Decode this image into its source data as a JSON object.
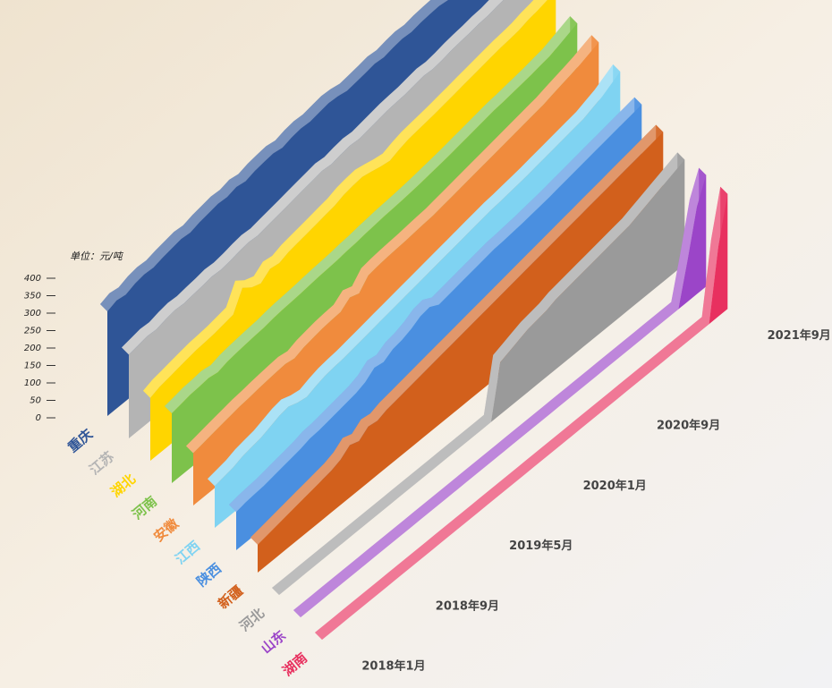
{
  "chart_data": {
    "type": "area3d",
    "y_label": "单位：元/吨",
    "ylim": [
      0,
      400
    ],
    "yticks": [
      0,
      50,
      100,
      150,
      200,
      250,
      300,
      350,
      400
    ],
    "categories": [
      "2018年1月",
      null,
      null,
      null,
      null,
      null,
      null,
      null,
      "2018年9月",
      null,
      null,
      null,
      null,
      null,
      null,
      null,
      "2019年5月",
      null,
      null,
      null,
      null,
      null,
      null,
      null,
      "2020年1月",
      null,
      null,
      null,
      null,
      null,
      null,
      null,
      "2020年9月",
      null,
      null,
      null,
      null,
      null,
      null,
      null,
      null,
      null,
      null,
      null,
      "2021年9月"
    ],
    "series": [
      {
        "name": "重庆",
        "color": "#2f5597",
        "values": [
          300,
          310,
          305,
          315,
          320,
          318,
          325,
          330,
          335,
          332,
          340,
          345,
          350,
          348,
          355,
          350,
          358,
          362,
          365,
          360,
          368,
          372,
          370,
          375,
          380,
          378,
          372,
          376,
          380,
          385,
          382,
          388,
          392,
          390,
          395,
          398,
          400,
          396,
          402,
          405,
          410,
          408,
          415,
          420,
          430
        ]
      },
      {
        "name": "江苏",
        "color": "#b4b4b4",
        "values": [
          240,
          245,
          250,
          248,
          255,
          260,
          258,
          262,
          265,
          270,
          268,
          272,
          278,
          282,
          280,
          285,
          290,
          295,
          300,
          305,
          310,
          315,
          312,
          318,
          322,
          320,
          325,
          330,
          335,
          338,
          340,
          345,
          350,
          348,
          352,
          358,
          362,
          365,
          370,
          372,
          378,
          382,
          388,
          392,
          400
        ]
      },
      {
        "name": "湖北",
        "color": "#ffd500",
        "values": [
          180,
          190,
          195,
          200,
          205,
          210,
          212,
          215,
          220,
          225,
          280,
          260,
          250,
          270,
          265,
          275,
          280,
          285,
          290,
          295,
          300,
          310,
          315,
          318,
          312,
          305,
          300,
          310,
          318,
          322,
          326,
          330,
          335,
          340,
          345,
          350,
          355,
          360,
          365,
          368,
          372,
          380,
          385,
          392,
          400
        ]
      },
      {
        "name": "河南",
        "color": "#7dc24b",
        "values": [
          200,
          205,
          210,
          212,
          215,
          210,
          218,
          222,
          225,
          228,
          230,
          235,
          238,
          240,
          242,
          245,
          248,
          250,
          252,
          256,
          258,
          262,
          265,
          268,
          270,
          272,
          275,
          278,
          282,
          286,
          290,
          295,
          300,
          305,
          310,
          315,
          318,
          322,
          326,
          330,
          335,
          340,
          350,
          360,
          370
        ]
      },
      {
        "name": "安徽",
        "color": "#f08b3d",
        "values": [
          150,
          155,
          160,
          165,
          170,
          175,
          178,
          182,
          185,
          188,
          190,
          185,
          195,
          200,
          205,
          208,
          210,
          230,
          220,
          250,
          255,
          258,
          260,
          262,
          265,
          268,
          270,
          275,
          280,
          285,
          290,
          295,
          300,
          305,
          310,
          315,
          320,
          325,
          330,
          338,
          345,
          352,
          360,
          370,
          380
        ]
      },
      {
        "name": "江西",
        "color": "#7fd3f2",
        "values": [
          120,
          125,
          130,
          140,
          145,
          150,
          160,
          170,
          175,
          165,
          160,
          170,
          178,
          182,
          185,
          190,
          195,
          200,
          205,
          210,
          215,
          220,
          225,
          230,
          235,
          240,
          245,
          250,
          255,
          260,
          265,
          268,
          272,
          276,
          280,
          285,
          290,
          295,
          300,
          305,
          310,
          320,
          330,
          345,
          360
        ]
      },
      {
        "name": "陕西",
        "color": "#4a8fe0",
        "values": [
          110,
          115,
          118,
          120,
          125,
          130,
          135,
          140,
          148,
          150,
          155,
          160,
          165,
          170,
          180,
          200,
          195,
          210,
          215,
          225,
          240,
          245,
          230,
          235,
          240,
          245,
          250,
          255,
          260,
          262,
          265,
          268,
          272,
          276,
          280,
          285,
          290,
          295,
          300,
          305,
          310,
          315,
          320,
          325,
          330
        ]
      },
      {
        "name": "新疆",
        "color": "#d2601c",
        "values": [
          80,
          85,
          90,
          95,
          100,
          105,
          110,
          115,
          120,
          130,
          150,
          140,
          160,
          155,
          165,
          170,
          175,
          180,
          185,
          190,
          195,
          200,
          205,
          210,
          215,
          220,
          225,
          230,
          235,
          240,
          245,
          250,
          255,
          260,
          265,
          270,
          275,
          280,
          285,
          290,
          295,
          300,
          305,
          310,
          315
        ]
      },
      {
        "name": "河北",
        "color": "#9a9a9a",
        "values": [
          0,
          0,
          0,
          0,
          0,
          0,
          0,
          0,
          0,
          0,
          0,
          0,
          0,
          0,
          0,
          0,
          0,
          0,
          0,
          0,
          0,
          0,
          0,
          0,
          150,
          160,
          170,
          180,
          185,
          190,
          200,
          205,
          210,
          215,
          220,
          225,
          230,
          235,
          240,
          250,
          260,
          270,
          280,
          290,
          300
        ]
      },
      {
        "name": "山东",
        "color": "#9b45c8",
        "values": [
          0,
          0,
          0,
          0,
          0,
          0,
          0,
          0,
          0,
          0,
          0,
          0,
          0,
          0,
          0,
          0,
          0,
          0,
          0,
          0,
          0,
          0,
          0,
          0,
          0,
          0,
          0,
          0,
          0,
          0,
          0,
          0,
          0,
          0,
          0,
          0,
          0,
          0,
          0,
          0,
          0,
          0,
          120,
          250,
          320
        ]
      },
      {
        "name": "湖南",
        "color": "#e8305f",
        "values": [
          0,
          0,
          0,
          0,
          0,
          0,
          0,
          0,
          0,
          0,
          0,
          0,
          0,
          0,
          0,
          0,
          0,
          0,
          0,
          0,
          0,
          0,
          0,
          0,
          0,
          0,
          0,
          0,
          0,
          0,
          0,
          0,
          0,
          0,
          0,
          0,
          0,
          0,
          0,
          0,
          0,
          0,
          0,
          200,
          330
        ]
      }
    ]
  }
}
